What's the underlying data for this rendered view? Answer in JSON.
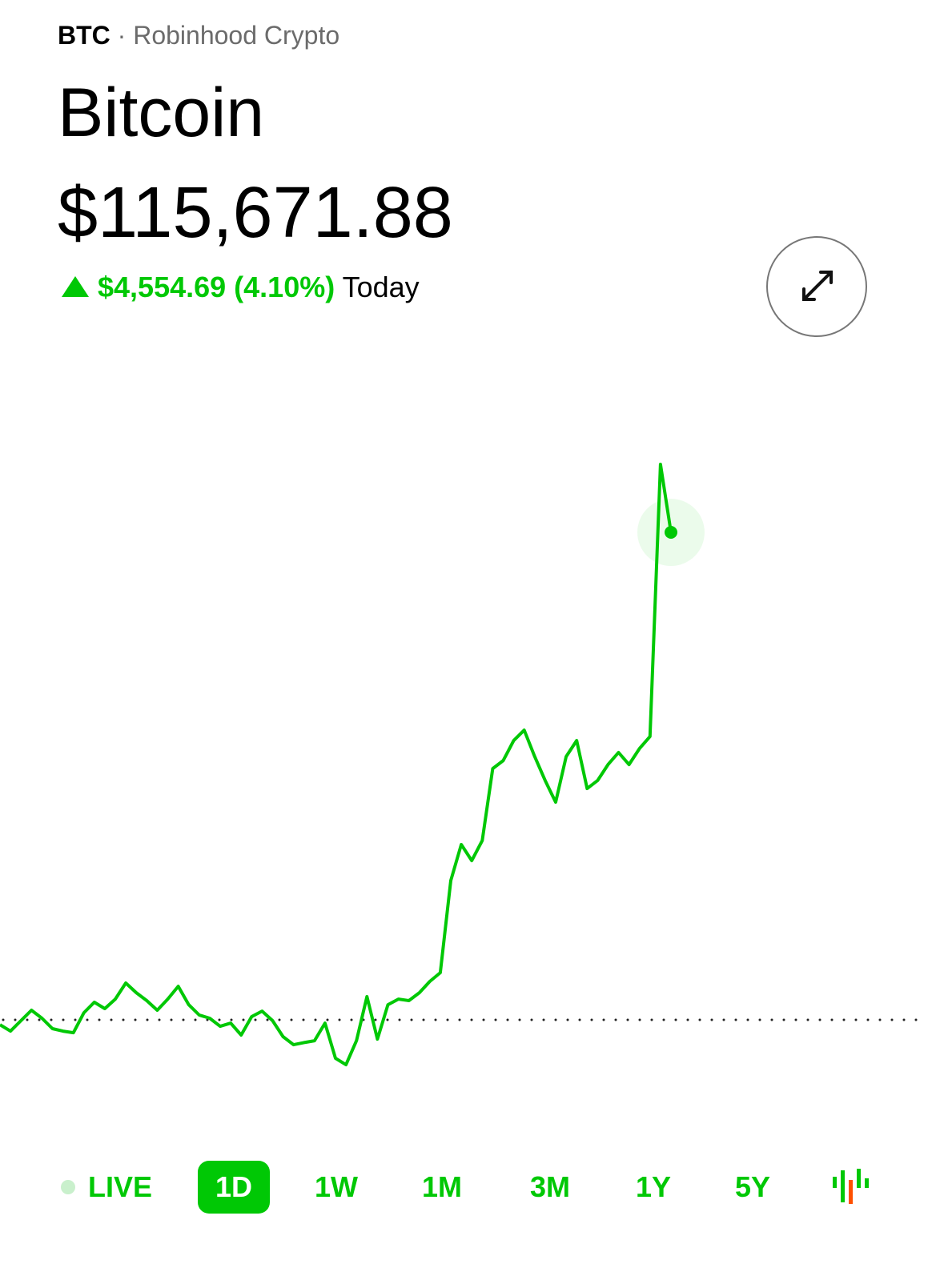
{
  "header": {
    "ticker": "BTC",
    "separator": "·",
    "source": "Robinhood Crypto",
    "name": "Bitcoin",
    "price": "$115,671.88",
    "change": "$4,554.69 (4.10%)",
    "period": "Today"
  },
  "chart_data": {
    "type": "line",
    "color": "#00c805",
    "values": [
      111072,
      111012,
      111110,
      111207,
      111132,
      111035,
      111012,
      110997,
      111184,
      111282,
      111222,
      111311,
      111461,
      111371,
      111297,
      111207,
      111311,
      111431,
      111259,
      111162,
      111132,
      111057,
      111087,
      110975,
      111147,
      111199,
      111110,
      110960,
      110885,
      110905,
      110922,
      111087,
      110758,
      110698,
      110922,
      111334,
      110937,
      111259,
      111311,
      111297,
      111371,
      111476,
      111558,
      112418,
      112755,
      112605,
      112792,
      113465,
      113540,
      113727,
      113824,
      113577,
      113353,
      113151,
      113577,
      113727,
      113278,
      113353,
      113502,
      113615,
      113502,
      113652,
      113764,
      116308,
      115671.88
    ],
    "ylim": [
      110175,
      116906
    ],
    "baseline": 111117.19
  },
  "ranges": [
    "LIVE",
    "1D",
    "1W",
    "1M",
    "3M",
    "1Y",
    "5Y"
  ],
  "selected_range": 1
}
